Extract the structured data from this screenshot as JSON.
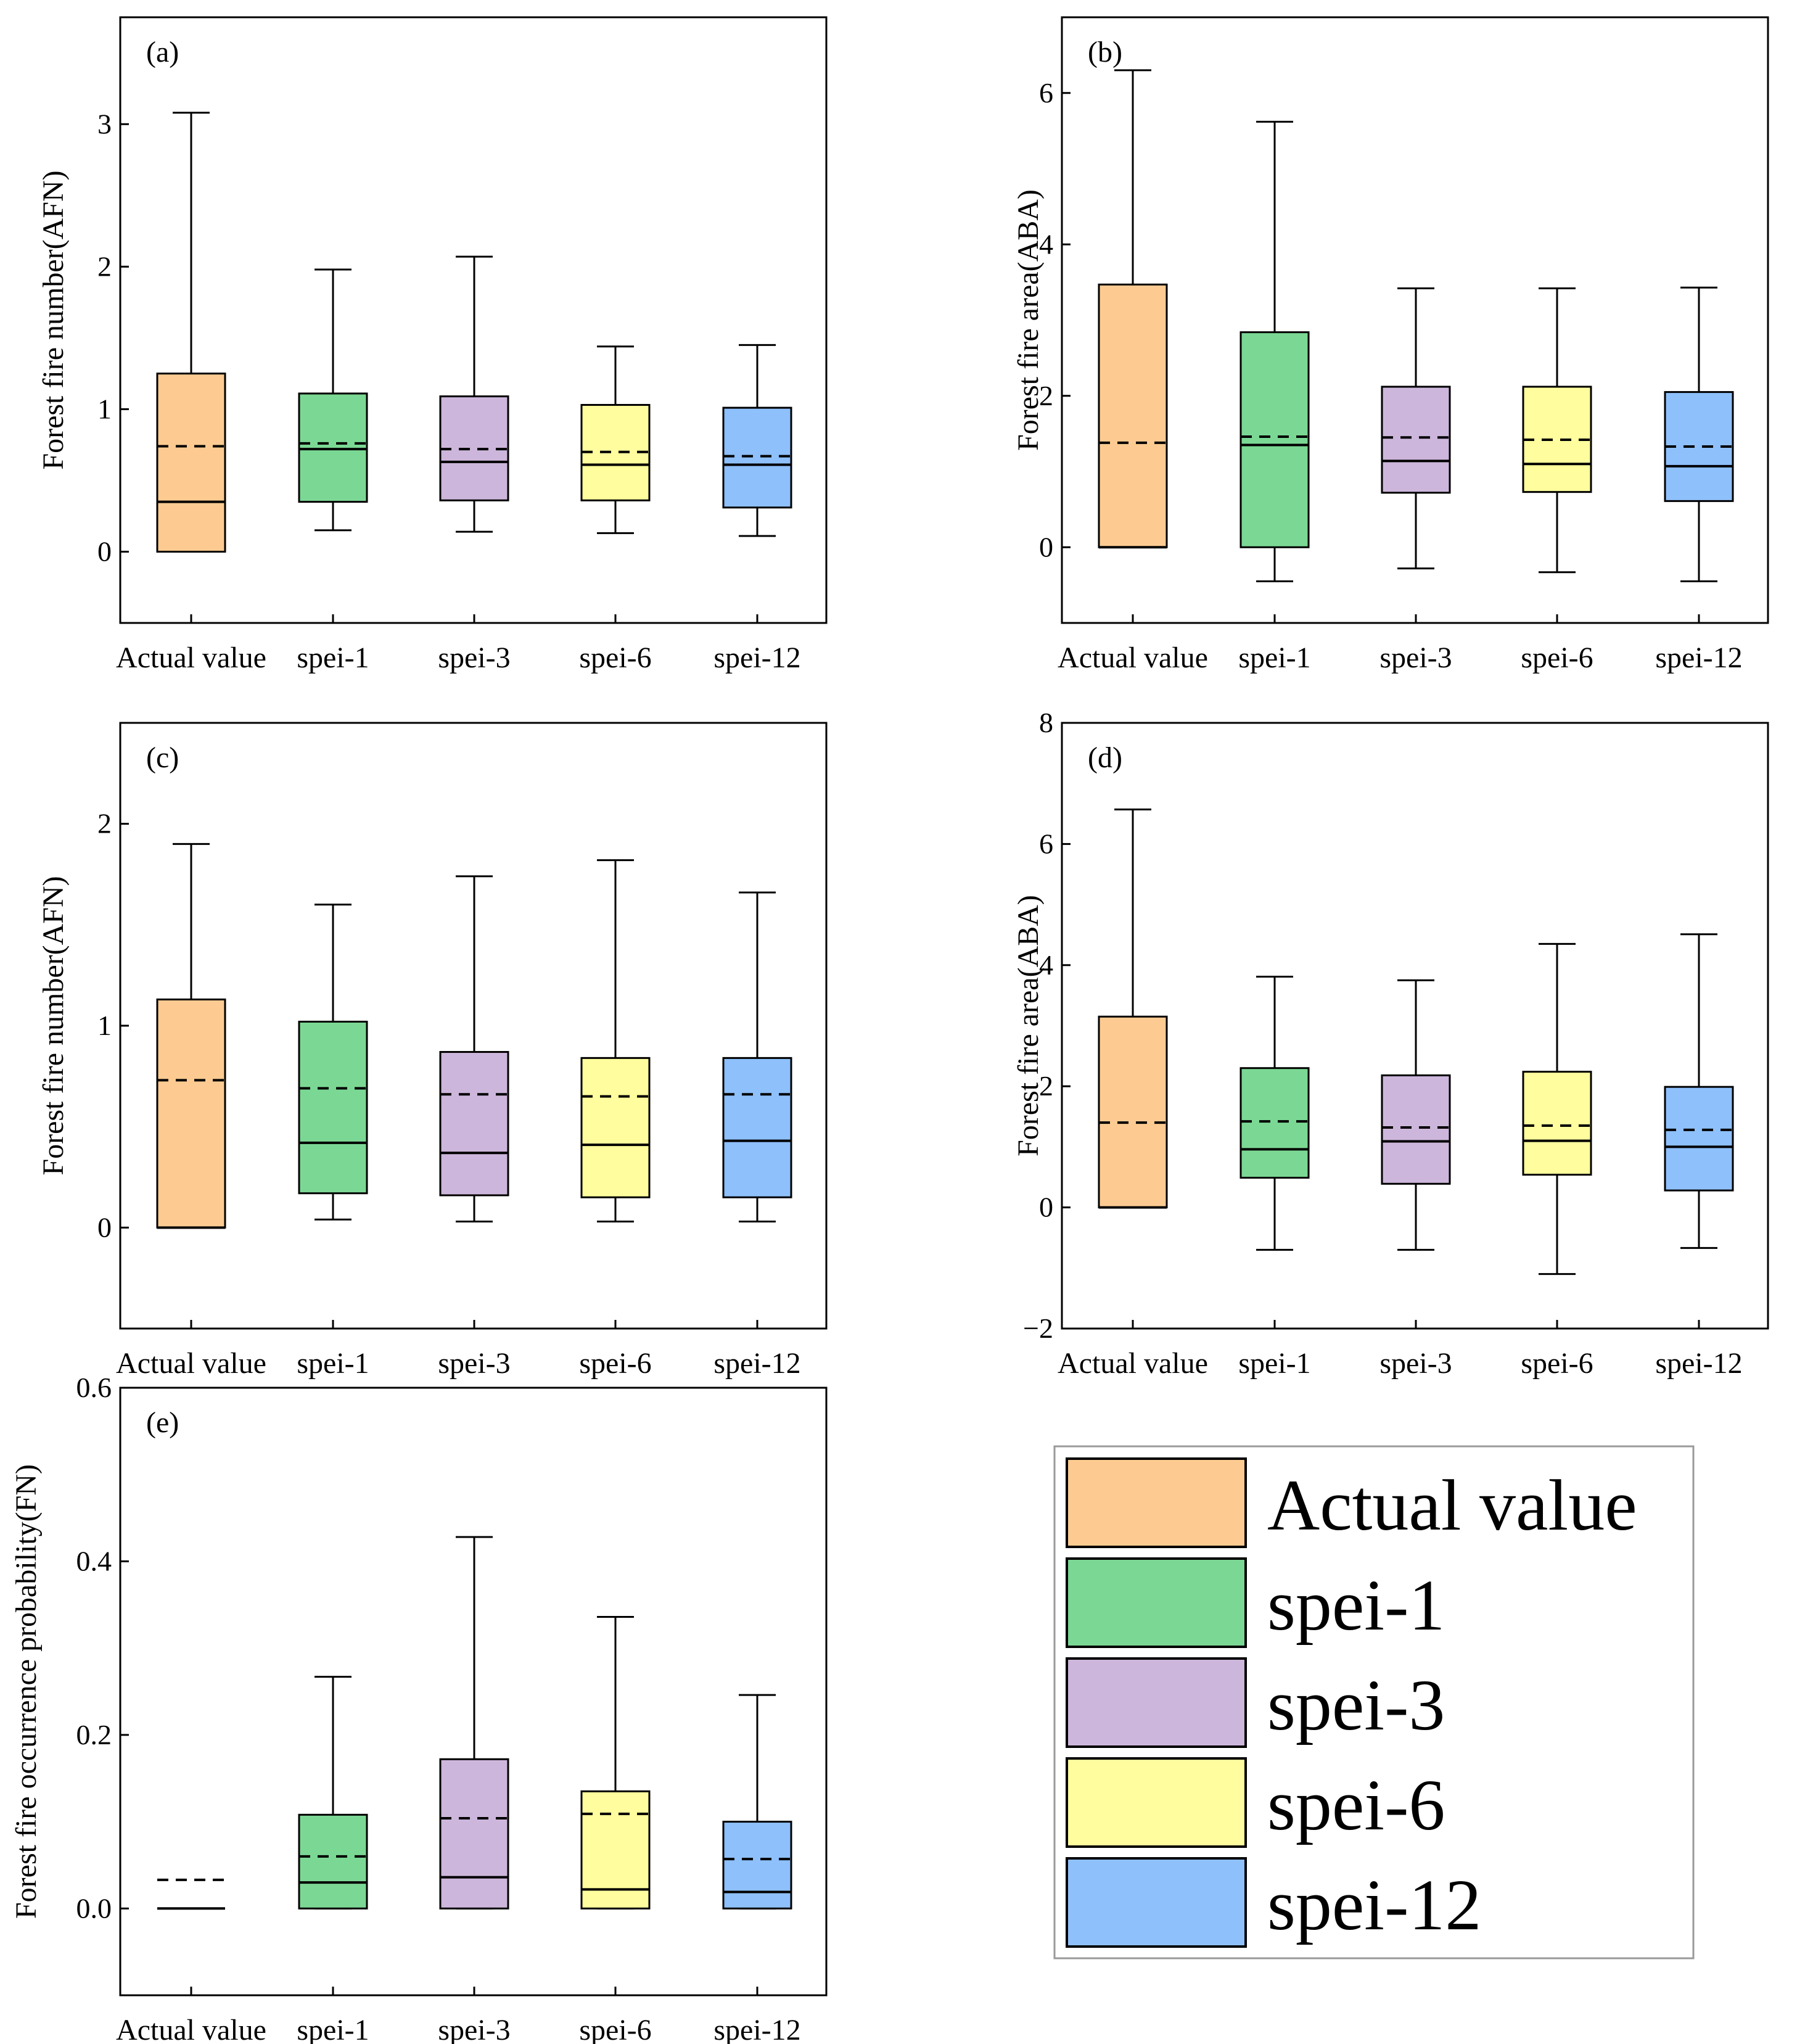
{
  "colors": {
    "Actual value": "#FDCB91",
    "spei-1": "#7BD894",
    "spei-3": "#CDB6DB",
    "spei-6": "#FFFD9D",
    "spei-12": "#8EC0FB"
  },
  "legend": {
    "entries": [
      "Actual value",
      "spei-1",
      "spei-3",
      "spei-6",
      "spei-12"
    ]
  },
  "chart_data": [
    {
      "id": "a",
      "type": "box",
      "panel_label": "(a)",
      "ylabel": "Forest fire number(AFN)",
      "xlabel": "",
      "ylim": [
        -0.5,
        3.75
      ],
      "yticks": [
        0,
        1,
        2,
        3
      ],
      "ytick_labels": [
        "0",
        "1",
        "2",
        "3"
      ],
      "categories": [
        "Actual value",
        "spei-1",
        "spei-3",
        "spei-6",
        "spei-12"
      ],
      "series": [
        {
          "name": "Actual value",
          "whisker_low": 0.0,
          "q1": 0.0,
          "median": 0.35,
          "q3": 1.25,
          "whisker_high": 3.08,
          "mean": 0.74
        },
        {
          "name": "spei-1",
          "whisker_low": 0.15,
          "q1": 0.35,
          "median": 0.72,
          "q3": 1.11,
          "whisker_high": 1.98,
          "mean": 0.76
        },
        {
          "name": "spei-3",
          "whisker_low": 0.14,
          "q1": 0.36,
          "median": 0.63,
          "q3": 1.09,
          "whisker_high": 2.07,
          "mean": 0.72
        },
        {
          "name": "spei-6",
          "whisker_low": 0.13,
          "q1": 0.36,
          "median": 0.61,
          "q3": 1.03,
          "whisker_high": 1.44,
          "mean": 0.7
        },
        {
          "name": "spei-12",
          "whisker_low": 0.11,
          "q1": 0.31,
          "median": 0.61,
          "q3": 1.01,
          "whisker_high": 1.45,
          "mean": 0.67
        }
      ]
    },
    {
      "id": "b",
      "type": "box",
      "panel_label": "(b)",
      "ylabel": "Forest fire area(ABA)",
      "xlabel": "",
      "ylim": [
        -1,
        7
      ],
      "yticks": [
        0,
        2,
        4,
        6
      ],
      "ytick_labels": [
        "0",
        "2",
        "4",
        "6"
      ],
      "categories": [
        "Actual value",
        "spei-1",
        "spei-3",
        "spei-6",
        "spei-12"
      ],
      "series": [
        {
          "name": "Actual value",
          "whisker_low": 0.0,
          "q1": 0.0,
          "median": 0.0,
          "q3": 3.47,
          "whisker_high": 6.3,
          "mean": 1.38
        },
        {
          "name": "spei-1",
          "whisker_low": -0.45,
          "q1": 0.0,
          "median": 1.35,
          "q3": 2.84,
          "whisker_high": 5.62,
          "mean": 1.46
        },
        {
          "name": "spei-3",
          "whisker_low": -0.28,
          "q1": 0.72,
          "median": 1.14,
          "q3": 2.12,
          "whisker_high": 3.42,
          "mean": 1.45
        },
        {
          "name": "spei-6",
          "whisker_low": -0.33,
          "q1": 0.73,
          "median": 1.1,
          "q3": 2.12,
          "whisker_high": 3.42,
          "mean": 1.42
        },
        {
          "name": "spei-12",
          "whisker_low": -0.45,
          "q1": 0.61,
          "median": 1.07,
          "q3": 2.05,
          "whisker_high": 3.43,
          "mean": 1.33
        }
      ]
    },
    {
      "id": "c",
      "type": "box",
      "panel_label": "(c)",
      "ylabel": "Forest fire number(AFN)",
      "xlabel": "",
      "ylim": [
        -0.5,
        2.5
      ],
      "yticks": [
        0,
        1,
        2
      ],
      "ytick_labels": [
        "0",
        "1",
        "2"
      ],
      "categories": [
        "Actual value",
        "spei-1",
        "spei-3",
        "spei-6",
        "spei-12"
      ],
      "series": [
        {
          "name": "Actual value",
          "whisker_low": 0.0,
          "q1": 0.0,
          "median": 0.0,
          "q3": 1.13,
          "whisker_high": 1.9,
          "mean": 0.73
        },
        {
          "name": "spei-1",
          "whisker_low": 0.04,
          "q1": 0.17,
          "median": 0.42,
          "q3": 1.02,
          "whisker_high": 1.6,
          "mean": 0.69
        },
        {
          "name": "spei-3",
          "whisker_low": 0.03,
          "q1": 0.16,
          "median": 0.37,
          "q3": 0.87,
          "whisker_high": 1.74,
          "mean": 0.66
        },
        {
          "name": "spei-6",
          "whisker_low": 0.03,
          "q1": 0.15,
          "median": 0.41,
          "q3": 0.84,
          "whisker_high": 1.82,
          "mean": 0.65
        },
        {
          "name": "spei-12",
          "whisker_low": 0.03,
          "q1": 0.15,
          "median": 0.43,
          "q3": 0.84,
          "whisker_high": 1.66,
          "mean": 0.66
        }
      ]
    },
    {
      "id": "d",
      "type": "box",
      "panel_label": "(d)",
      "ylabel": "Forest fire area(ABA)",
      "xlabel": "",
      "ylim": [
        -2,
        8
      ],
      "yticks": [
        -2,
        0,
        2,
        4,
        6,
        8
      ],
      "ytick_labels": [
        "−2",
        "0",
        "2",
        "4",
        "6",
        "8"
      ],
      "categories": [
        "Actual value",
        "spei-1",
        "spei-3",
        "spei-6",
        "spei-12"
      ],
      "series": [
        {
          "name": "Actual value",
          "whisker_low": 0.0,
          "q1": 0.0,
          "median": 0.0,
          "q3": 3.15,
          "whisker_high": 6.57,
          "mean": 1.4
        },
        {
          "name": "spei-1",
          "whisker_low": -0.7,
          "q1": 0.49,
          "median": 0.96,
          "q3": 2.3,
          "whisker_high": 3.81,
          "mean": 1.42
        },
        {
          "name": "spei-3",
          "whisker_low": -0.7,
          "q1": 0.39,
          "median": 1.09,
          "q3": 2.18,
          "whisker_high": 3.75,
          "mean": 1.32
        },
        {
          "name": "spei-6",
          "whisker_low": -1.1,
          "q1": 0.54,
          "median": 1.1,
          "q3": 2.24,
          "whisker_high": 4.35,
          "mean": 1.35
        },
        {
          "name": "spei-12",
          "whisker_low": -0.67,
          "q1": 0.28,
          "median": 1.0,
          "q3": 1.99,
          "whisker_high": 4.51,
          "mean": 1.28
        }
      ]
    },
    {
      "id": "e",
      "type": "box",
      "panel_label": "(e)",
      "ylabel": "Forest fire occurrence probability(FN)",
      "xlabel": "",
      "ylim": [
        -0.1,
        0.6
      ],
      "yticks": [
        0.0,
        0.2,
        0.4,
        0.6
      ],
      "ytick_labels": [
        "0.0",
        "0.2",
        "0.4",
        "0.6"
      ],
      "categories": [
        "Actual value",
        "spei-1",
        "spei-3",
        "spei-6",
        "spei-12"
      ],
      "series": [
        {
          "name": "Actual value",
          "whisker_low": 0.0,
          "q1": 0.0,
          "median": 0.0,
          "q3": 0.0,
          "whisker_high": 0.0,
          "mean": 0.033
        },
        {
          "name": "spei-1",
          "whisker_low": 0.0,
          "q1": 0.0,
          "median": 0.03,
          "q3": 0.108,
          "whisker_high": 0.267,
          "mean": 0.06
        },
        {
          "name": "spei-3",
          "whisker_low": 0.0,
          "q1": 0.0,
          "median": 0.036,
          "q3": 0.172,
          "whisker_high": 0.428,
          "mean": 0.104
        },
        {
          "name": "spei-6",
          "whisker_low": 0.0,
          "q1": 0.0,
          "median": 0.022,
          "q3": 0.135,
          "whisker_high": 0.336,
          "mean": 0.109
        },
        {
          "name": "spei-12",
          "whisker_low": 0.0,
          "q1": 0.0,
          "median": 0.019,
          "q3": 0.1,
          "whisker_high": 0.246,
          "mean": 0.057
        }
      ]
    }
  ]
}
